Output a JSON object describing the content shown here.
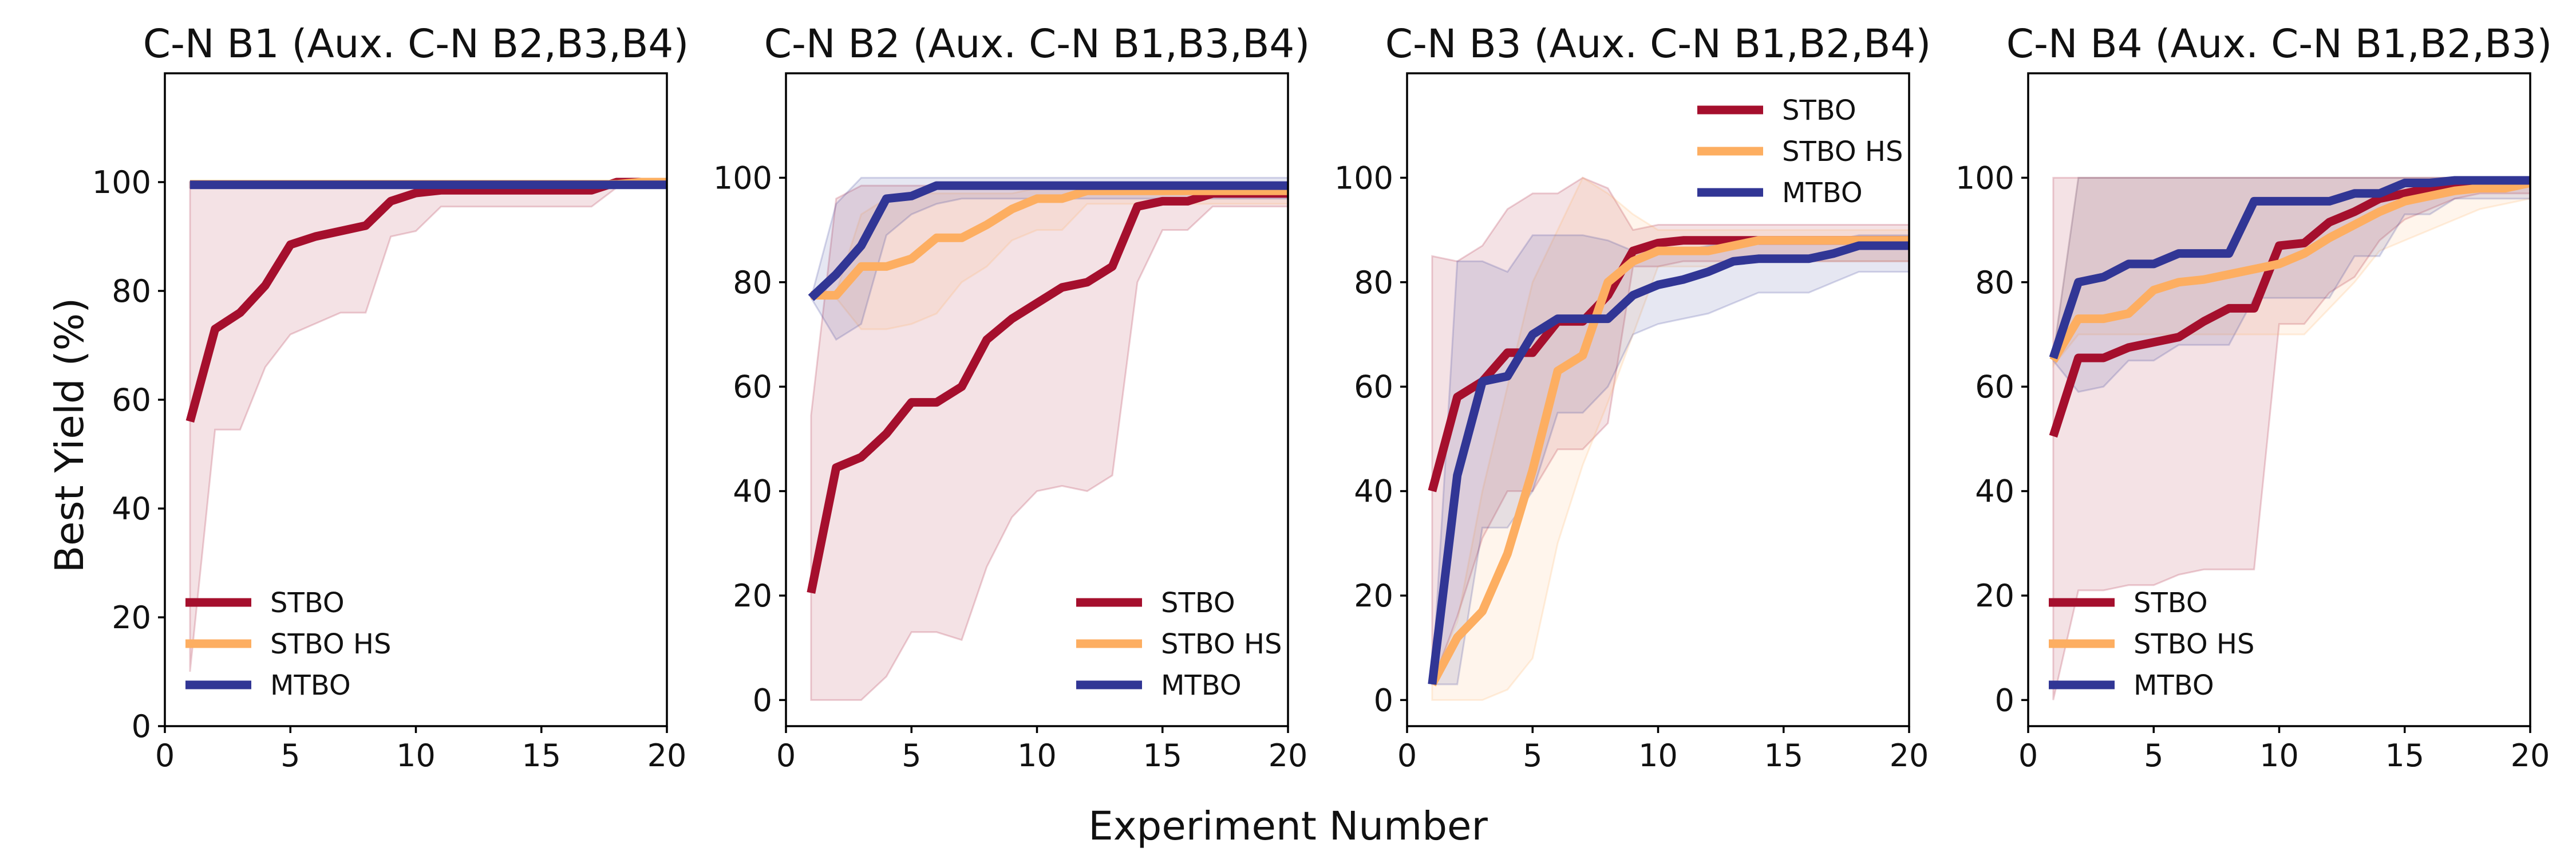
{
  "figure": {
    "xlabel": "Experiment Number",
    "ylabel": "Best Yield (%)"
  },
  "colors": {
    "STBO": "#a50f2d",
    "STBO HS": "#fdae61",
    "MTBO": "#313695"
  },
  "chart_data": [
    {
      "type": "line",
      "title": "C-N B1 (Aux. C-N B2,B3,B4)",
      "xlim": [
        0,
        20
      ],
      "ylim": [
        0,
        120
      ],
      "xticks": [
        0,
        5,
        10,
        15,
        20
      ],
      "yticks": [
        0,
        20,
        40,
        60,
        80,
        100
      ],
      "legend_position": "lower-left",
      "grid": false,
      "x": [
        1,
        2,
        3,
        4,
        5,
        6,
        7,
        8,
        9,
        10,
        11,
        12,
        13,
        14,
        15,
        16,
        17,
        18,
        19,
        20
      ],
      "series": [
        {
          "name": "STBO",
          "values": [
            56,
            73,
            76,
            81,
            88.5,
            90,
            91,
            92,
            96.5,
            98,
            98.5,
            98.5,
            98.5,
            98.5,
            98.5,
            98.5,
            98.5,
            100,
            100,
            100
          ],
          "lower": [
            10,
            54.5,
            54.5,
            66,
            72,
            74,
            76,
            76,
            90,
            91,
            95.5,
            95.5,
            95.5,
            95.5,
            95.5,
            95.5,
            95.5,
            99,
            100,
            100
          ],
          "upper": [
            100,
            100,
            100,
            100,
            100,
            100,
            100,
            100,
            100,
            100,
            100,
            100,
            100,
            100,
            100,
            100,
            100,
            100,
            100,
            100
          ]
        },
        {
          "name": "STBO HS",
          "values": [
            99.6,
            99.6,
            99.6,
            99.6,
            99.6,
            99.6,
            99.6,
            99.6,
            99.6,
            99.6,
            99.6,
            99.6,
            99.6,
            99.6,
            99.6,
            99.6,
            99.6,
            99.6,
            100,
            100
          ],
          "lower": [
            99,
            99,
            99,
            99,
            99,
            99,
            99,
            99,
            99,
            99,
            99,
            99,
            99,
            99,
            99,
            99,
            99,
            99,
            99.5,
            99.5
          ],
          "upper": [
            100,
            100,
            100,
            100,
            100,
            100,
            100,
            100,
            100,
            100,
            100,
            100,
            100,
            100,
            100,
            100,
            100,
            100,
            100,
            100
          ]
        },
        {
          "name": "MTBO",
          "values": [
            99.5,
            99.5,
            99.5,
            99.5,
            99.5,
            99.5,
            99.5,
            99.5,
            99.5,
            99.5,
            99.5,
            99.5,
            99.5,
            99.5,
            99.5,
            99.5,
            99.5,
            99.5,
            99.5,
            99.5
          ],
          "lower": [
            99,
            99,
            99,
            99,
            99,
            99,
            99,
            99,
            99,
            99,
            99,
            99,
            99,
            99,
            99,
            99,
            99,
            99,
            99,
            99
          ],
          "upper": [
            100,
            100,
            100,
            100,
            100,
            100,
            100,
            100,
            100,
            100,
            100,
            100,
            100,
            100,
            100,
            100,
            100,
            100,
            100,
            100
          ]
        }
      ]
    },
    {
      "type": "line",
      "title": "C-N B2 (Aux. C-N B1,B3,B4)",
      "xlim": [
        0,
        20
      ],
      "ylim": [
        -5,
        120
      ],
      "xticks": [
        0,
        5,
        10,
        15,
        20
      ],
      "yticks": [
        0,
        20,
        40,
        60,
        80,
        100
      ],
      "legend_position": "lower-right",
      "grid": false,
      "x": [
        1,
        2,
        3,
        4,
        5,
        6,
        7,
        8,
        9,
        10,
        11,
        12,
        13,
        14,
        15,
        16,
        17,
        18,
        19,
        20
      ],
      "series": [
        {
          "name": "STBO",
          "values": [
            20.5,
            44.5,
            46.5,
            51,
            57,
            57,
            60,
            69,
            73,
            76,
            79,
            80,
            83,
            94.5,
            95.5,
            95.5,
            97,
            97,
            97,
            97
          ],
          "lower": [
            0,
            0,
            0,
            4.5,
            13,
            13,
            11.5,
            25.5,
            35,
            40,
            41,
            40,
            43,
            80,
            90,
            90,
            94.5,
            94.5,
            94.5,
            94.5
          ],
          "upper": [
            54.5,
            96,
            98.5,
            98.5,
            98.5,
            98.5,
            98.5,
            98.5,
            98.5,
            98.5,
            98.5,
            98.5,
            98.5,
            98.5,
            98.5,
            98.5,
            98.5,
            98.5,
            98.5,
            98.5
          ]
        },
        {
          "name": "STBO HS",
          "values": [
            77.5,
            77.5,
            83,
            83,
            84.5,
            88.5,
            88.5,
            91,
            94,
            96,
            96,
            97.5,
            97.5,
            97.5,
            97.5,
            97.5,
            97.5,
            97.5,
            97.5,
            97.5
          ],
          "lower": [
            77,
            77,
            71,
            71,
            72,
            74,
            80,
            83,
            88,
            90,
            90,
            95,
            95,
            95,
            95,
            95,
            95,
            95,
            95,
            95
          ],
          "upper": [
            78,
            78,
            93,
            96,
            97,
            97,
            97,
            97,
            97,
            98,
            98,
            98,
            98,
            98,
            98,
            98,
            98,
            98,
            98,
            98
          ]
        },
        {
          "name": "MTBO",
          "values": [
            77,
            81.5,
            87,
            96,
            96.5,
            98.5,
            98.5,
            98.5,
            98.5,
            98.5,
            98.5,
            98.5,
            98.5,
            98.5,
            98.5,
            98.5,
            98.5,
            98.5,
            98.5,
            98.5
          ],
          "lower": [
            77,
            69,
            72,
            89,
            93,
            95,
            96,
            96,
            96,
            96,
            96,
            96,
            96,
            96,
            96,
            96,
            96,
            96,
            96,
            96
          ],
          "upper": [
            77,
            95,
            100,
            100,
            100,
            100,
            100,
            100,
            100,
            100,
            100,
            100,
            100,
            100,
            100,
            100,
            100,
            100,
            100,
            100
          ]
        }
      ]
    },
    {
      "type": "line",
      "title": "C-N B3 (Aux. C-N B1,B2,B4)",
      "xlim": [
        0,
        20
      ],
      "ylim": [
        -5,
        120
      ],
      "xticks": [
        0,
        5,
        10,
        15,
        20
      ],
      "yticks": [
        0,
        20,
        40,
        60,
        80,
        100
      ],
      "legend_position": "upper-right",
      "grid": false,
      "x": [
        1,
        2,
        3,
        4,
        5,
        6,
        7,
        8,
        9,
        10,
        11,
        12,
        13,
        14,
        15,
        16,
        17,
        18,
        19,
        20
      ],
      "series": [
        {
          "name": "STBO",
          "values": [
            40,
            58,
            61,
            66.5,
            66.5,
            72.5,
            72.5,
            77.5,
            86,
            87.5,
            88,
            88,
            88,
            88,
            88,
            88,
            88,
            88,
            88,
            88
          ],
          "lower": [
            3,
            16,
            31,
            40,
            40,
            48,
            48,
            53,
            83,
            83,
            84,
            84,
            84,
            84,
            84,
            84,
            84,
            84,
            84,
            84
          ],
          "upper": [
            85,
            84,
            87,
            94,
            97,
            97,
            100,
            98,
            90,
            91,
            91,
            91,
            91,
            91,
            91,
            91,
            91,
            91,
            91,
            91
          ]
        },
        {
          "name": "STBO HS",
          "values": [
            3,
            12,
            17,
            28,
            44,
            63,
            66,
            80,
            84,
            86,
            86,
            86,
            87,
            88,
            88,
            88,
            88,
            88,
            88,
            88
          ],
          "lower": [
            0,
            0,
            0,
            2,
            8,
            30,
            45,
            57,
            70,
            83,
            83,
            83,
            84,
            84,
            84,
            84,
            84,
            84,
            84,
            84
          ],
          "upper": [
            4,
            15,
            40,
            60,
            80,
            90,
            100,
            97,
            93,
            90,
            90,
            90,
            90,
            90,
            90,
            90,
            90,
            90,
            90,
            90
          ]
        },
        {
          "name": "MTBO",
          "values": [
            3,
            43,
            61,
            62,
            70,
            73,
            73,
            73,
            77.5,
            79.5,
            80.5,
            82,
            84,
            84.5,
            84.5,
            84.5,
            85.5,
            87,
            87,
            87
          ],
          "lower": [
            3,
            3,
            33,
            33,
            40,
            55,
            55,
            60,
            70,
            72,
            73,
            74,
            76,
            78,
            78,
            78,
            80,
            82,
            82,
            82
          ],
          "upper": [
            3,
            84,
            84,
            82,
            89,
            89,
            89,
            88,
            86,
            86,
            86,
            87,
            88,
            88,
            88,
            88,
            88,
            89,
            89,
            89
          ]
        }
      ]
    },
    {
      "type": "line",
      "title": "C-N B4 (Aux. C-N B1,B2,B3)",
      "xlim": [
        0,
        20
      ],
      "ylim": [
        -5,
        120
      ],
      "xticks": [
        0,
        5,
        10,
        15,
        20
      ],
      "yticks": [
        0,
        20,
        40,
        60,
        80,
        100
      ],
      "legend_position": "lower-left",
      "grid": false,
      "x": [
        1,
        2,
        3,
        4,
        5,
        6,
        7,
        8,
        9,
        10,
        11,
        12,
        13,
        14,
        15,
        16,
        17,
        18,
        19,
        20
      ],
      "series": [
        {
          "name": "STBO",
          "values": [
            50.5,
            65.5,
            65.5,
            67.5,
            68.5,
            69.5,
            72.5,
            75,
            75,
            87,
            87.5,
            91.5,
            93.5,
            96,
            97,
            98,
            99,
            99.5,
            99.5,
            99.5
          ],
          "lower": [
            0,
            21,
            21,
            22,
            22,
            24,
            25,
            25,
            25,
            72,
            72,
            78,
            81,
            88,
            92,
            94,
            96,
            97,
            97,
            97
          ],
          "upper": [
            100,
            100,
            100,
            100,
            100,
            100,
            100,
            100,
            100,
            100,
            100,
            100,
            100,
            100,
            100,
            100,
            100,
            100,
            100,
            100
          ]
        },
        {
          "name": "STBO HS",
          "values": [
            65,
            73,
            73,
            74,
            78.5,
            80,
            80.5,
            81.5,
            82.5,
            83.5,
            85.5,
            88.5,
            91,
            93.5,
            95.5,
            96.5,
            97.5,
            98,
            98,
            99
          ],
          "lower": [
            64,
            70,
            70,
            70,
            70,
            70,
            70,
            70,
            70,
            70,
            70,
            75,
            80,
            86,
            88,
            90,
            92,
            94,
            95,
            96
          ],
          "upper": [
            66,
            100,
            100,
            100,
            100,
            100,
            100,
            100,
            100,
            100,
            100,
            100,
            100,
            100,
            100,
            100,
            100,
            100,
            100,
            100
          ]
        },
        {
          "name": "MTBO",
          "values": [
            65.5,
            80,
            81,
            83.5,
            83.5,
            85.5,
            85.5,
            85.5,
            95.5,
            95.5,
            95.5,
            95.5,
            97,
            97,
            99,
            99,
            99.5,
            99.5,
            99.5,
            99.5
          ],
          "lower": [
            65,
            59,
            60,
            65,
            65,
            68,
            68,
            68,
            77,
            77,
            77,
            77,
            85,
            85,
            93,
            93,
            96,
            96,
            96,
            96
          ],
          "upper": [
            66,
            100,
            100,
            100,
            100,
            100,
            100,
            100,
            100,
            100,
            100,
            100,
            100,
            100,
            100,
            100,
            100,
            100,
            100,
            100
          ]
        }
      ]
    }
  ]
}
